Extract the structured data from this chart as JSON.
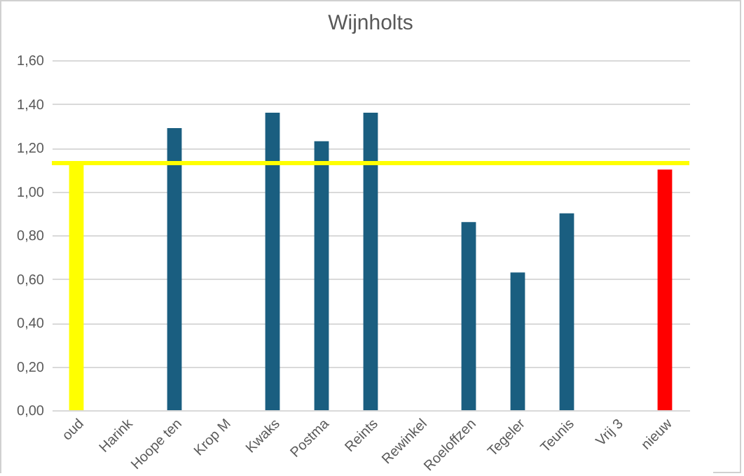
{
  "chart_data": {
    "type": "bar",
    "title": "Wijnholts",
    "categories": [
      "oud",
      "Harink",
      "Hoope ten",
      "Krop M",
      "Kwaks",
      "Postma",
      "Reints",
      "Rewinkel",
      "Roeloffzen",
      "Tegeler",
      "Teunis",
      "Vrij 3",
      "nieuw"
    ],
    "values": [
      1.13,
      null,
      1.29,
      null,
      1.36,
      1.23,
      1.36,
      null,
      0.86,
      0.63,
      0.9,
      null,
      1.1
    ],
    "colors": [
      "#ffff00",
      "#1a5e80",
      "#1a5e80",
      "#1a5e80",
      "#1a5e80",
      "#1a5e80",
      "#1a5e80",
      "#1a5e80",
      "#1a5e80",
      "#1a5e80",
      "#1a5e80",
      "#1a5e80",
      "#ff0000"
    ],
    "ylim": [
      0,
      1.6
    ],
    "yticks": [
      {
        "value": 0,
        "label": "0,00"
      },
      {
        "value": 0.2,
        "label": "0,20"
      },
      {
        "value": 0.4,
        "label": "0,40"
      },
      {
        "value": 0.6,
        "label": "0,60"
      },
      {
        "value": 0.8,
        "label": "0,80"
      },
      {
        "value": 1.0,
        "label": "1,00"
      },
      {
        "value": 1.2,
        "label": "1,20"
      },
      {
        "value": 1.4,
        "label": "1,40"
      },
      {
        "value": 1.6,
        "label": "1,60"
      }
    ],
    "ref_lines": [
      {
        "axis": "y",
        "value": 1.13,
        "color": "#ffff00"
      }
    ],
    "grid": "y"
  }
}
